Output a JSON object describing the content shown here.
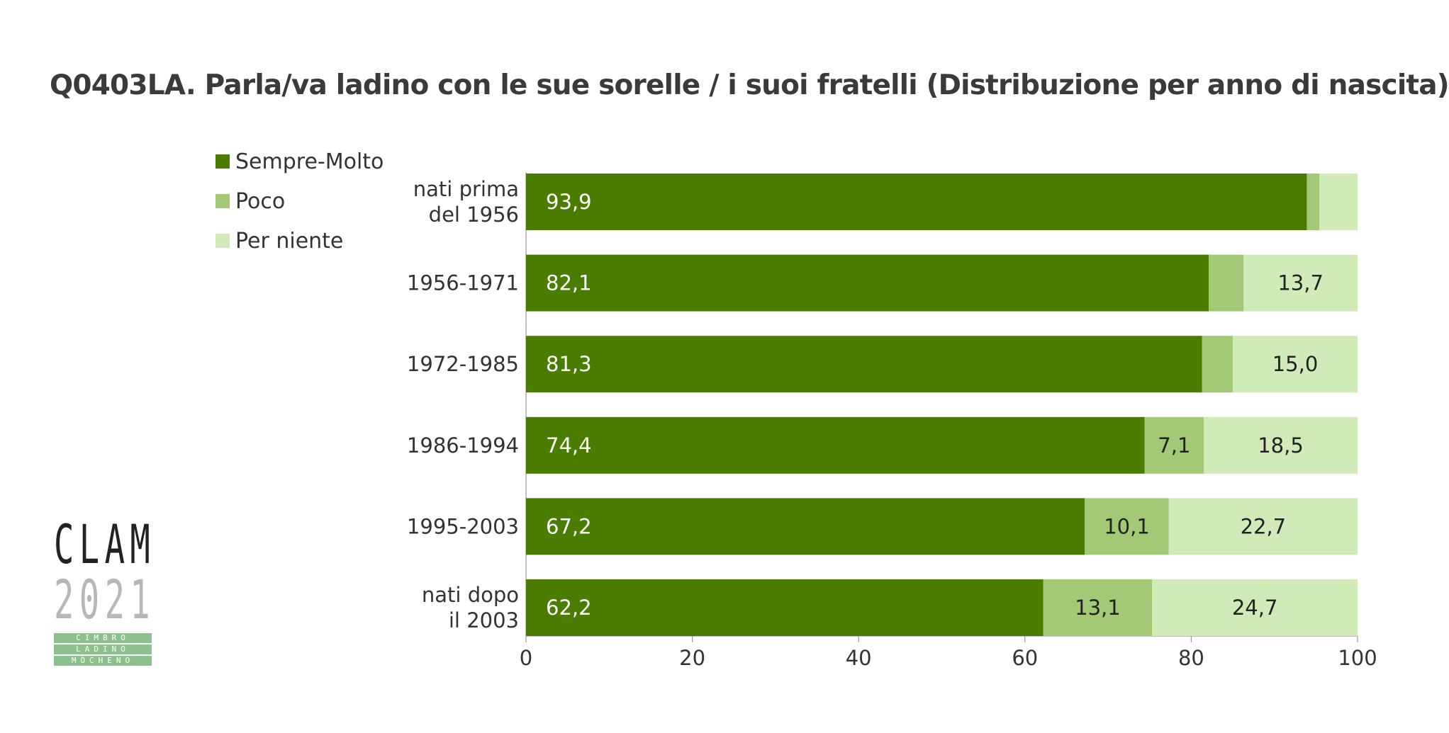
{
  "title": "Q0403LA. Parla/va ladino con le sue sorelle / i suoi fratelli (Distribuzione per anno di nascita)",
  "legend": [
    {
      "label": "Sempre-Molto",
      "color": "#4a7c00"
    },
    {
      "label": "Poco",
      "color": "#a3c876"
    },
    {
      "label": "Per niente",
      "color": "#d0eab8"
    }
  ],
  "logo": {
    "line1": "CLAM",
    "line2": "2021",
    "band": [
      "CIMBRO",
      "LADINO",
      "MÒCHENO"
    ]
  },
  "chart_data": {
    "type": "bar",
    "orientation": "horizontal",
    "stacked": true,
    "categories": [
      [
        "nati prima",
        "del 1956"
      ],
      [
        "1956-1971"
      ],
      [
        "1972-1985"
      ],
      [
        "1986-1994"
      ],
      [
        "1995-2003"
      ],
      [
        "nati dopo",
        "il 2003"
      ]
    ],
    "series": [
      {
        "name": "Sempre-Molto",
        "color": "#4a7c00",
        "label_color": "#ffffff",
        "values": [
          93.9,
          82.1,
          81.3,
          74.4,
          67.2,
          62.2
        ],
        "labels": [
          "93,9",
          "82,1",
          "81,3",
          "74,4",
          "67,2",
          "62,2"
        ]
      },
      {
        "name": "Poco",
        "color": "#a3c876",
        "label_color": "#222222",
        "values": [
          1.5,
          4.2,
          3.7,
          7.1,
          10.1,
          13.1
        ],
        "labels": [
          "",
          "",
          "",
          "7,1",
          "10,1",
          "13,1"
        ]
      },
      {
        "name": "Per niente",
        "color": "#d0eab8",
        "label_color": "#222222",
        "values": [
          4.6,
          13.7,
          15.0,
          18.5,
          22.7,
          24.7
        ],
        "labels": [
          "",
          "13,7",
          "15,0",
          "18,5",
          "22,7",
          "24,7"
        ]
      }
    ],
    "xlim": [
      0,
      100
    ],
    "xticks": [
      0,
      20,
      40,
      60,
      80,
      100
    ],
    "xlabel": "",
    "ylabel": "",
    "grid": false,
    "legend_position": "top-left"
  }
}
